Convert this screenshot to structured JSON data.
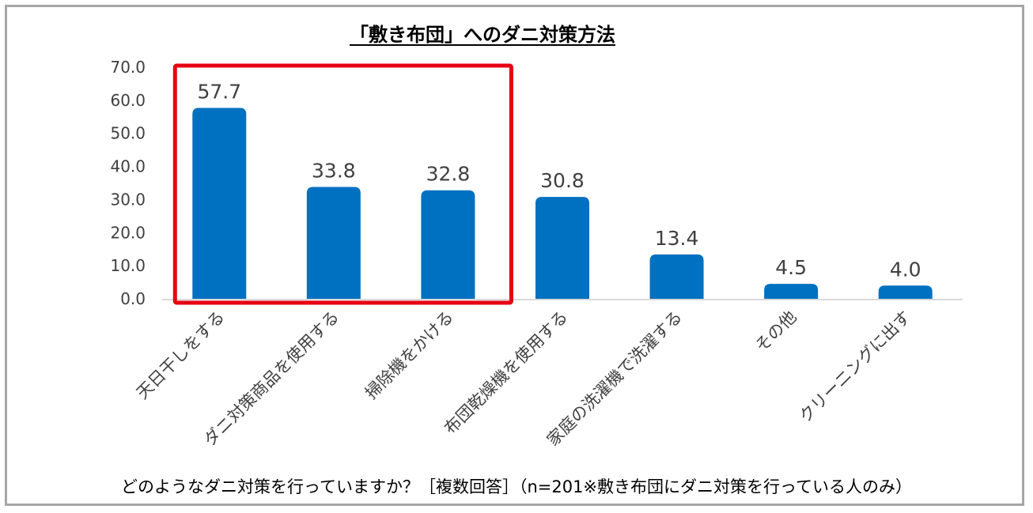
{
  "chart_data": {
    "type": "bar",
    "title": "「敷き布団」へのダニ対策方法",
    "categories": [
      "天日干しをする",
      "ダニ対策商品を使用する",
      "掃除機をかける",
      "布団乾燥機を使用する",
      "家庭の洗濯機で洗濯する",
      "その他",
      "クリーニングに出す"
    ],
    "values": [
      57.7,
      33.8,
      32.8,
      30.8,
      13.4,
      4.5,
      4.0
    ],
    "value_labels": [
      "57.7",
      "33.8",
      "32.8",
      "30.8",
      "13.4",
      "4.5",
      "4.0"
    ],
    "ylim": [
      0,
      70
    ],
    "yticks": [
      "0.0",
      "10.0",
      "20.0",
      "30.0",
      "40.0",
      "50.0",
      "60.0",
      "70.0"
    ],
    "xlabel": "どのようなダニ対策を行っていますか？［複数回答］（n=201※敷き布団にダニ対策を行っている人のみ）",
    "ylabel": "",
    "highlight": {
      "categories": [
        "天日干しをする",
        "ダニ対策商品を使用する",
        "掃除機をかける"
      ],
      "color": "#e60012"
    },
    "colors": {
      "bar": "#0070c0",
      "axis": "#d9d9d9",
      "text": "#404040",
      "frame": "#a6a6a6"
    }
  }
}
